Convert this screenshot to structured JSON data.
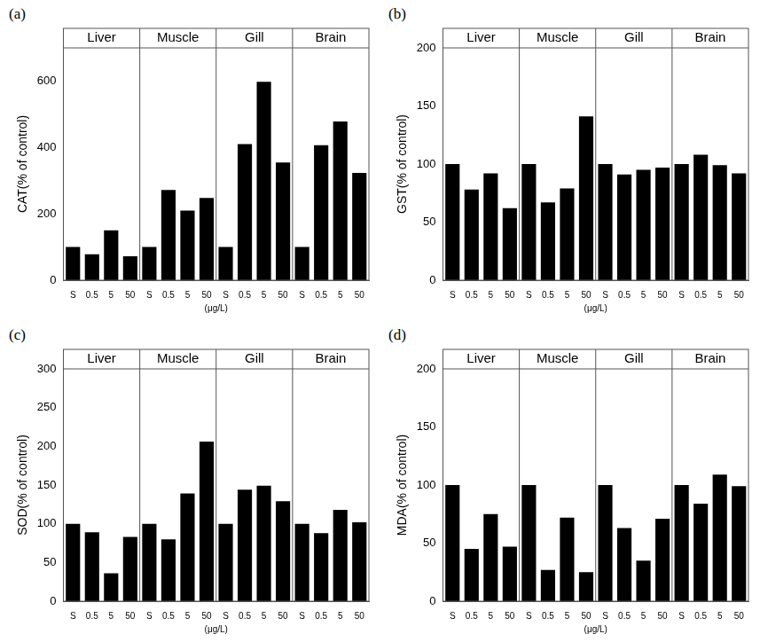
{
  "chart_data": [
    {
      "type": "bar",
      "panel": "(a)",
      "ylabel": "CAT(% of control)",
      "xlabel": "(μg/L)",
      "color": "#000000",
      "categories": [
        "S",
        "0.5",
        "5",
        "50"
      ],
      "groups": [
        {
          "name": "Liver",
          "values": [
            100,
            78,
            150,
            72
          ]
        },
        {
          "name": "Muscle",
          "values": [
            100,
            272,
            210,
            248
          ]
        },
        {
          "name": "Gill",
          "values": [
            100,
            410,
            598,
            355
          ]
        },
        {
          "name": "Brain",
          "values": [
            100,
            407,
            478,
            323
          ]
        }
      ],
      "ylim": [
        0,
        700
      ],
      "yticks": [
        0,
        200,
        400,
        600
      ],
      "grid": false
    },
    {
      "type": "bar",
      "panel": "(b)",
      "ylabel": "GST(% of control)",
      "xlabel": "(μg/L)",
      "color": "#000000",
      "categories": [
        "S",
        "0.5",
        "5",
        "50"
      ],
      "groups": [
        {
          "name": "Liver",
          "values": [
            100,
            78,
            92,
            62
          ]
        },
        {
          "name": "Muscle",
          "values": [
            100,
            67,
            79,
            141
          ]
        },
        {
          "name": "Gill",
          "values": [
            100,
            91,
            95,
            97
          ]
        },
        {
          "name": "Brain",
          "values": [
            100,
            108,
            99,
            92
          ]
        }
      ],
      "ylim": [
        0,
        200
      ],
      "yticks": [
        0,
        50,
        100,
        150,
        200
      ],
      "grid": false
    },
    {
      "type": "bar",
      "panel": "(c)",
      "ylabel": "SOD(% of control)",
      "xlabel": "(μg/L)",
      "color": "#000000",
      "categories": [
        "S",
        "0.5",
        "5",
        "50"
      ],
      "groups": [
        {
          "name": "Liver",
          "values": [
            100,
            89,
            36,
            83
          ]
        },
        {
          "name": "Muscle",
          "values": [
            100,
            80,
            139,
            206
          ]
        },
        {
          "name": "Gill",
          "values": [
            100,
            144,
            149,
            129
          ]
        },
        {
          "name": "Brain",
          "values": [
            100,
            88,
            118,
            102
          ]
        }
      ],
      "ylim": [
        0,
        300
      ],
      "yticks": [
        0,
        50,
        100,
        150,
        200,
        250,
        300
      ],
      "grid": false
    },
    {
      "type": "bar",
      "panel": "(d)",
      "ylabel": "MDA(% of control)",
      "xlabel": "(μg/L)",
      "color": "#000000",
      "categories": [
        "S",
        "0.5",
        "5",
        "50"
      ],
      "groups": [
        {
          "name": "Liver",
          "values": [
            100,
            45,
            75,
            47
          ]
        },
        {
          "name": "Muscle",
          "values": [
            100,
            27,
            72,
            25
          ]
        },
        {
          "name": "Gill",
          "values": [
            100,
            63,
            35,
            71
          ]
        },
        {
          "name": "Brain",
          "values": [
            100,
            84,
            109,
            99
          ]
        }
      ],
      "ylim": [
        0,
        200
      ],
      "yticks": [
        0,
        50,
        100,
        150,
        200
      ],
      "grid": false
    }
  ]
}
